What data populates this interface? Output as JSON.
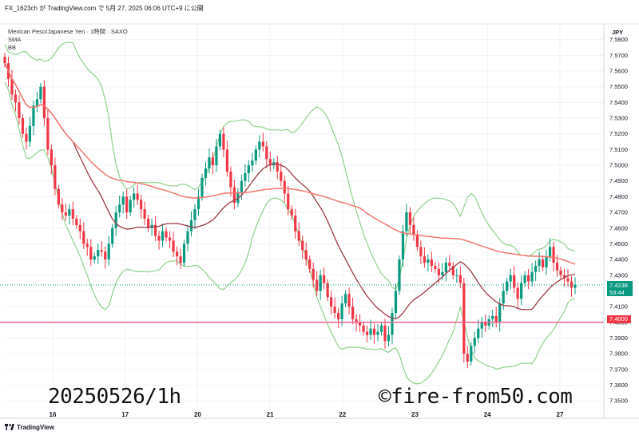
{
  "header": {
    "text": "FX_1623ch が TradingView.com で 5月 27, 2025 06:06 UTC+9 に公開"
  },
  "legend": {
    "symbol": "Mexican Peso/Japanese Yen · 1時間 · SAXO",
    "indicator_1": "SMA",
    "indicator_2": "BB"
  },
  "currency": "JPY",
  "last_price": {
    "price": "7.4238",
    "countdown": "53:44"
  },
  "level_line": {
    "label": "7.4000",
    "color": "#f06292"
  },
  "watermark": {
    "left": "20250526/1h",
    "right": "©fire-from50.com"
  },
  "footer": {
    "brand": "TradingView"
  },
  "colors": {
    "up": "#089981",
    "down": "#f23645",
    "bb": "#8fd18b",
    "sma_short": "#9e3a44",
    "sma_long": "#f4776f",
    "grid": "#f0f3fa"
  },
  "chart_data": {
    "type": "candlestick",
    "ylim": [
      7.345,
      7.59
    ],
    "y_ticks": [
      "7.5800",
      "7.5700",
      "7.5600",
      "7.5500",
      "7.5400",
      "7.5300",
      "7.5200",
      "7.5100",
      "7.5000",
      "7.4900",
      "7.4800",
      "7.4700",
      "7.4600",
      "7.4500",
      "7.4400",
      "7.4300",
      "7.4200",
      "7.4100",
      "7.4000",
      "7.3900",
      "7.3800",
      "7.3700",
      "7.3600",
      "7.3500"
    ],
    "x_labels": [
      "16",
      "17",
      "20",
      "21",
      "22",
      "23",
      "24",
      "27"
    ],
    "current_price": 7.4238,
    "horizontal_level": 7.4,
    "close": [
      7.565,
      7.555,
      7.545,
      7.54,
      7.53,
      7.52,
      7.515,
      7.525,
      7.538,
      7.542,
      7.55,
      7.53,
      7.51,
      7.5,
      7.485,
      7.475,
      7.47,
      7.468,
      7.472,
      7.466,
      7.462,
      7.458,
      7.45,
      7.448,
      7.44,
      7.442,
      7.446,
      7.445,
      7.44,
      7.45,
      7.46,
      7.47,
      7.475,
      7.48,
      7.47,
      7.478,
      7.482,
      7.478,
      7.472,
      7.466,
      7.46,
      7.462,
      7.455,
      7.452,
      7.458,
      7.454,
      7.452,
      7.445,
      7.442,
      7.438,
      7.45,
      7.458,
      7.465,
      7.472,
      7.48,
      7.492,
      7.498,
      7.505,
      7.5,
      7.512,
      7.52,
      7.51,
      7.496,
      7.486,
      7.476,
      7.483,
      7.49,
      7.495,
      7.5,
      7.503,
      7.51,
      7.515,
      7.512,
      7.504,
      7.5,
      7.502,
      7.496,
      7.49,
      7.482,
      7.472,
      7.468,
      7.458,
      7.452,
      7.446,
      7.44,
      7.434,
      7.427,
      7.42,
      7.43,
      7.425,
      7.416,
      7.41,
      7.406,
      7.402,
      7.412,
      7.418,
      7.41,
      7.402,
      7.4,
      7.398,
      7.394,
      7.392,
      7.396,
      7.392,
      7.394,
      7.398,
      7.388,
      7.392,
      7.406,
      7.42,
      7.44,
      7.458,
      7.47,
      7.462,
      7.456,
      7.448,
      7.442,
      7.438,
      7.44,
      7.436,
      7.434,
      7.43,
      7.432,
      7.438,
      7.436,
      7.43,
      7.43,
      7.425,
      7.38,
      7.375,
      7.385,
      7.39,
      7.396,
      7.4,
      7.398,
      7.402,
      7.404,
      7.4,
      7.412,
      7.42,
      7.426,
      7.43,
      7.422,
      7.415,
      7.425,
      7.43,
      7.426,
      7.432,
      7.436,
      7.44,
      7.435,
      7.442,
      7.448,
      7.438,
      7.433,
      7.43,
      7.428,
      7.426,
      7.422,
      7.4238
    ]
  }
}
